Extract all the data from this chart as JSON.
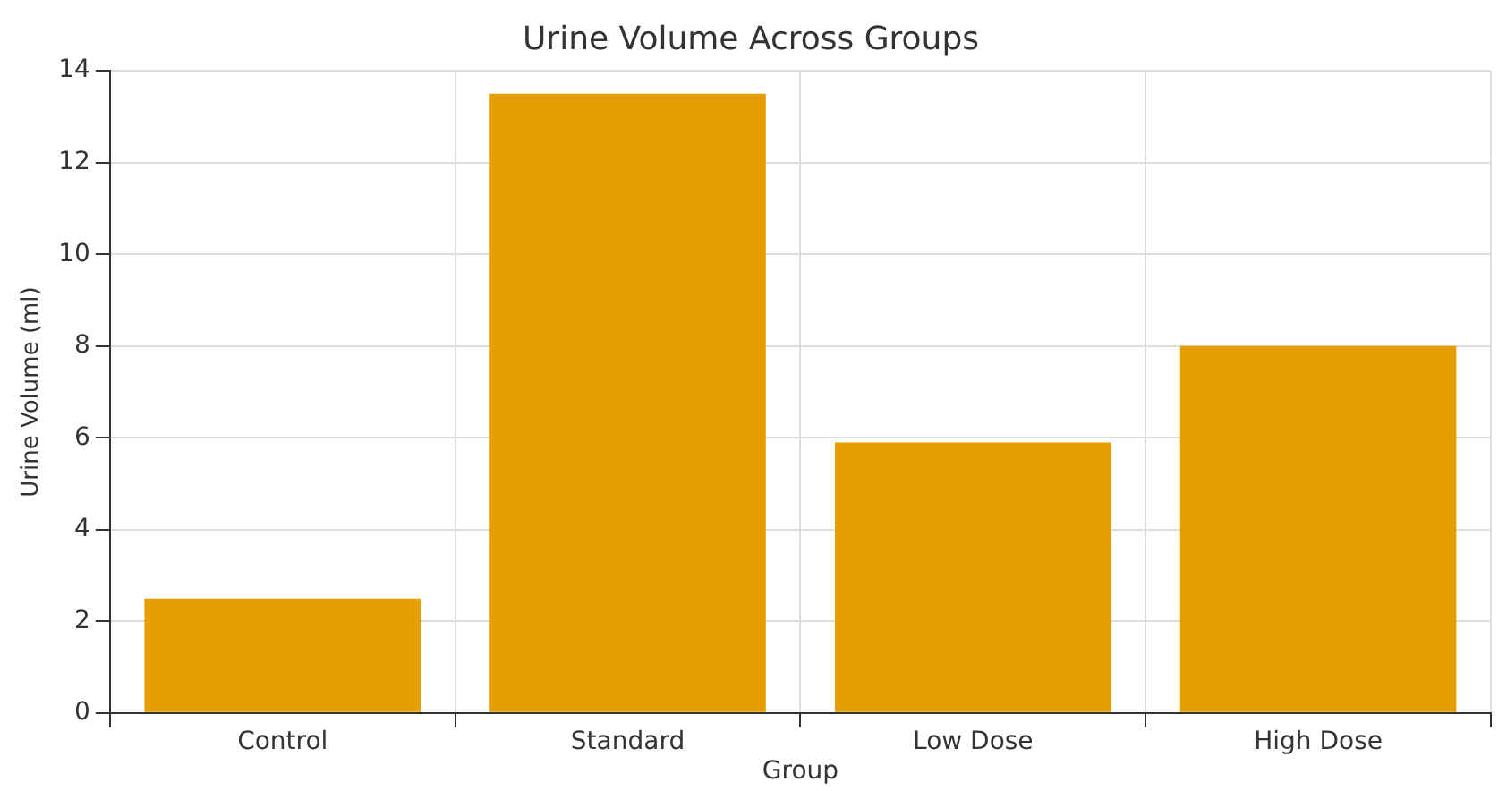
{
  "chart_data": {
    "type": "bar",
    "title": "Urine Volume Across Groups",
    "xlabel": "Group",
    "ylabel": "Urine Volume (ml)",
    "categories": [
      "Control",
      "Standard",
      "Low Dose",
      "High Dose"
    ],
    "values": [
      2.5,
      13.5,
      5.9,
      8.0
    ],
    "color": "#e69f00",
    "ylim": [
      0,
      14
    ],
    "yticks": [
      0,
      2,
      4,
      6,
      8,
      10,
      12,
      14
    ],
    "grid": true
  }
}
